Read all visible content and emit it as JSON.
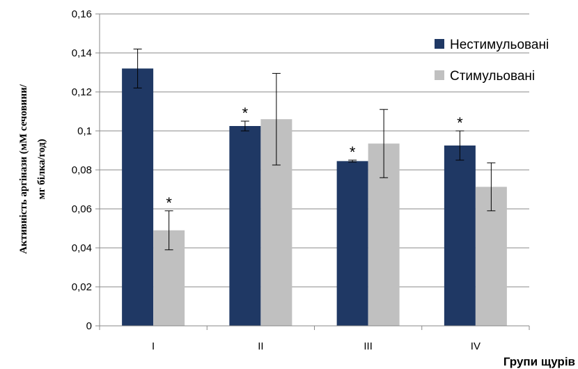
{
  "chart_data": {
    "type": "bar",
    "categories": [
      "I",
      "II",
      "III",
      "IV"
    ],
    "series": [
      {
        "name": "Нестимульовані",
        "color": "#1F3864",
        "values": [
          0.132,
          0.1025,
          0.0845,
          0.0925
        ],
        "errors": [
          0.01,
          0.0025,
          0.0005,
          0.0075
        ],
        "significance": [
          "",
          "*",
          "*",
          "*"
        ]
      },
      {
        "name": "Стимульовані",
        "color": "#C0C0C0",
        "values": [
          0.049,
          0.106,
          0.0935,
          0.0713
        ],
        "errors": [
          0.01,
          0.0235,
          0.0175,
          0.0123
        ],
        "significance": [
          "*",
          "",
          "",
          ""
        ]
      }
    ],
    "ylim": [
      0,
      0.16
    ],
    "yticks": [
      "0",
      "0,02",
      "0,04",
      "0,06",
      "0,08",
      "0,1",
      "0,12",
      "0,14",
      "0,16"
    ],
    "ytick_values": [
      0,
      0.02,
      0.04,
      0.06,
      0.08,
      0.1,
      0.12,
      0.14,
      0.16
    ],
    "xlabel": "Групи щурів",
    "ylabel_lines": [
      "Активність аргінази (мМ сечовини/",
      "мг білка/год)"
    ],
    "grid": true,
    "gridline_color": "#888888",
    "legend_position": "top-right"
  }
}
